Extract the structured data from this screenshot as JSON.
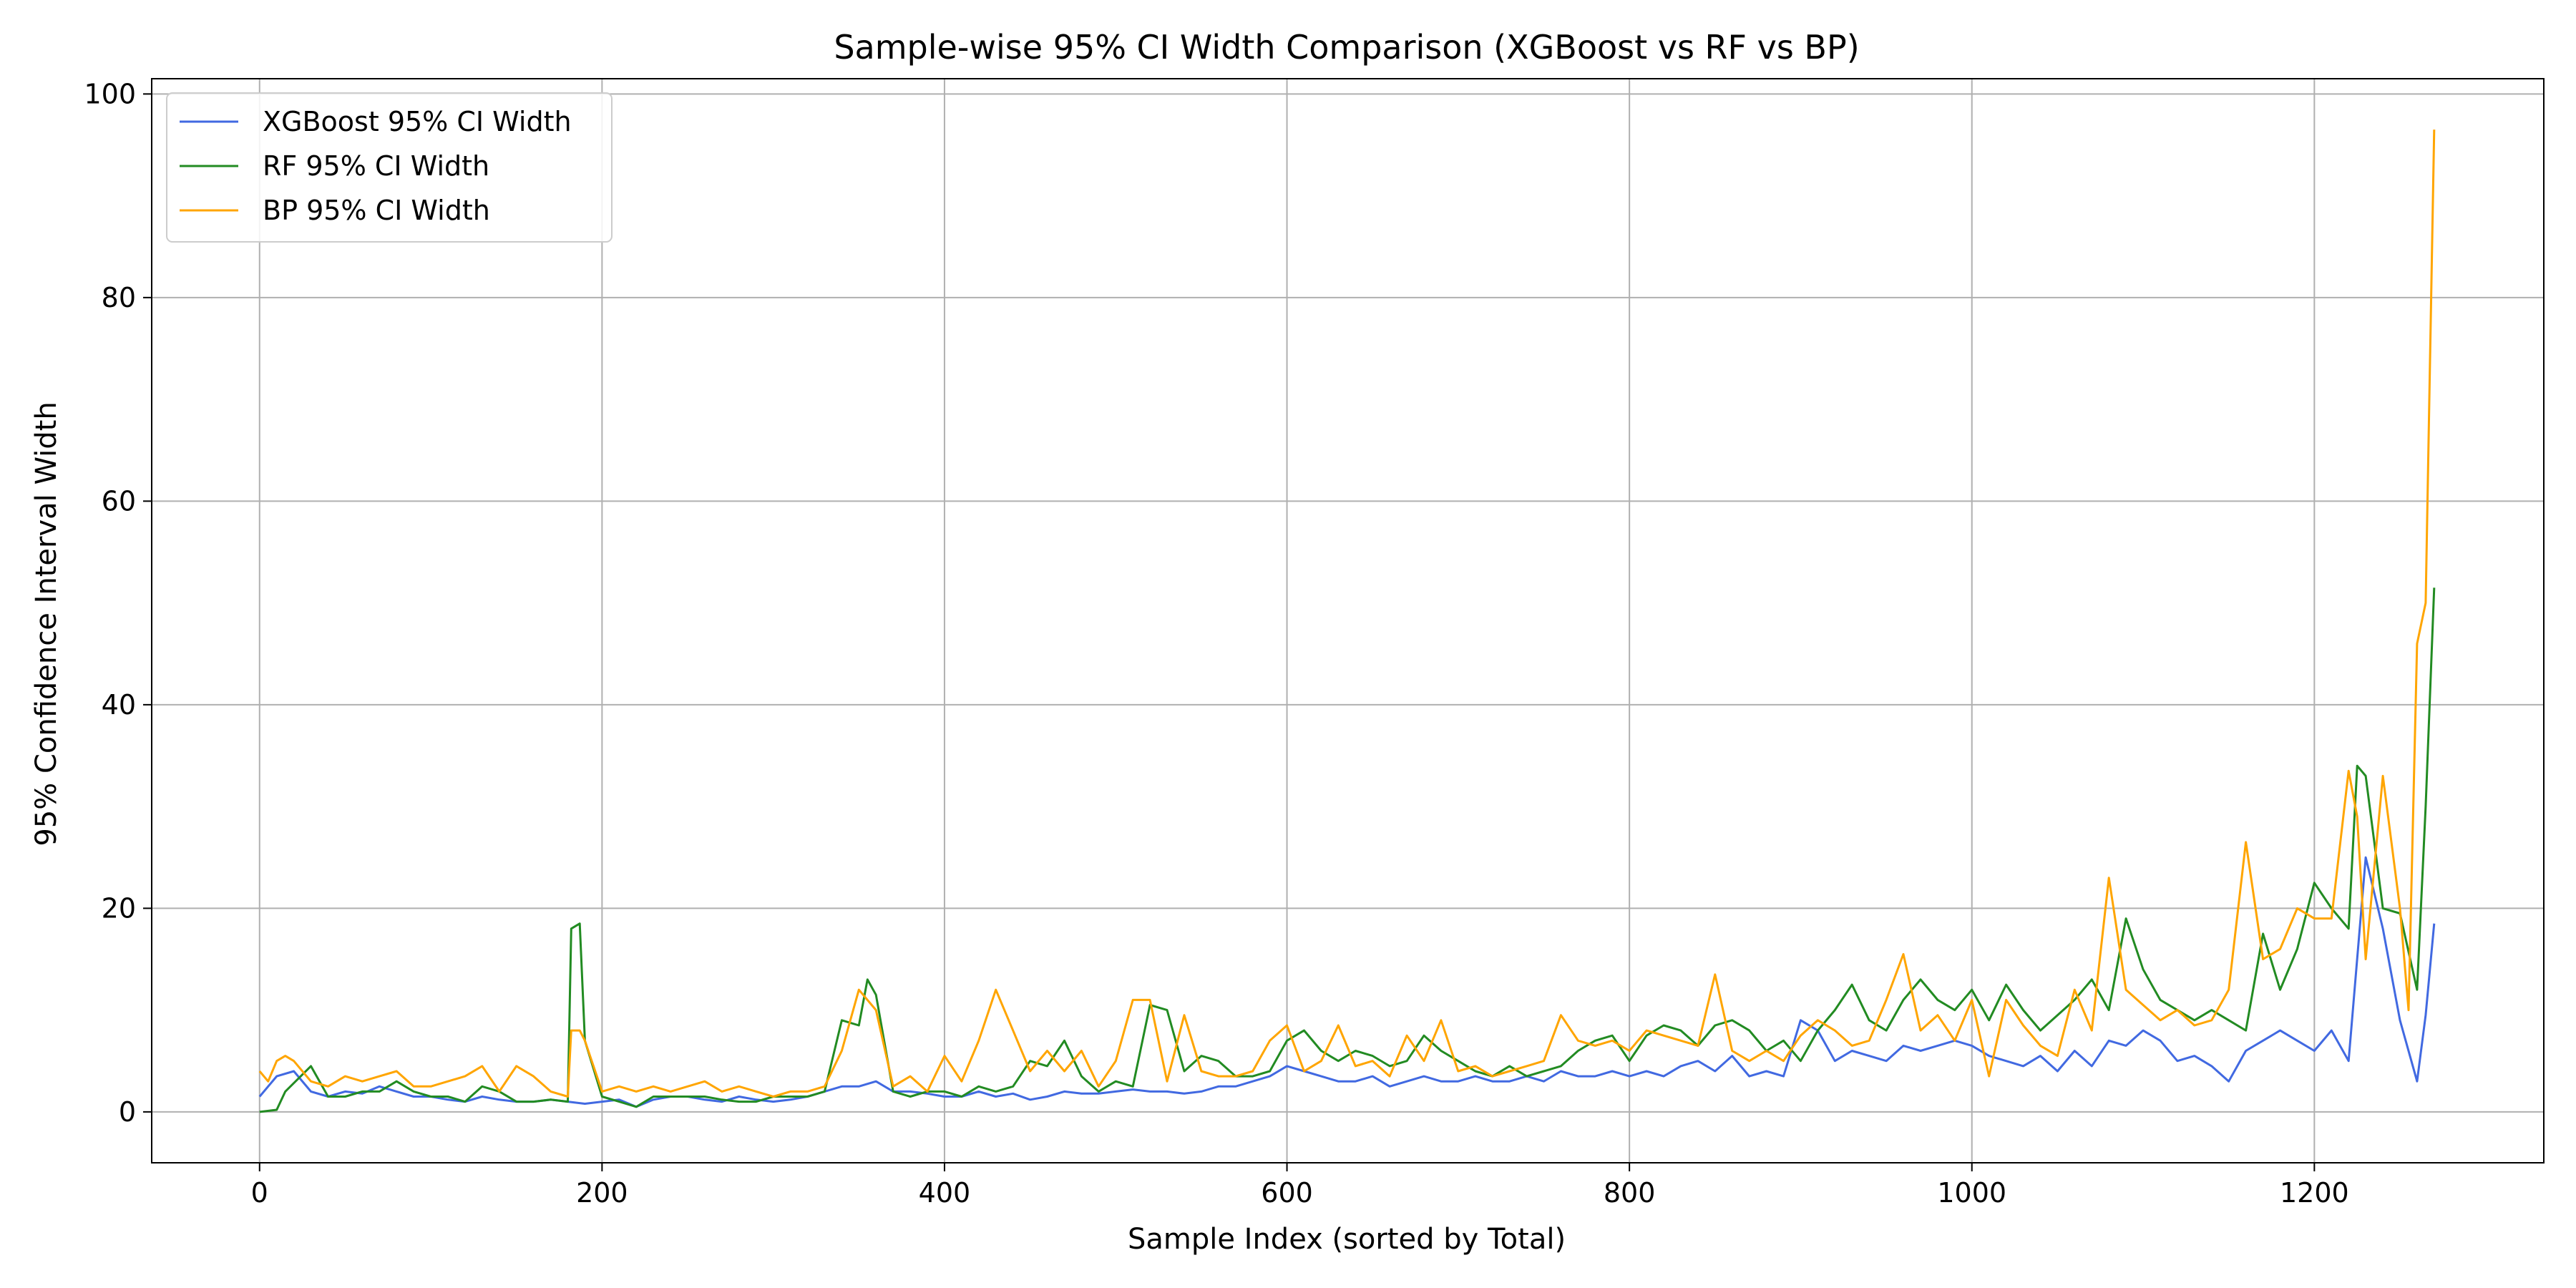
{
  "chart_data": {
    "type": "line",
    "title": "Sample-wise 95% CI Width Comparison (XGBoost vs RF vs BP)",
    "xlabel": "Sample Index (sorted by Total)",
    "ylabel": "95% Confidence Interval Width",
    "xlim": [
      -63,
      1334
    ],
    "ylim": [
      -5,
      101.5
    ],
    "xticks": [
      0,
      200,
      400,
      600,
      800,
      1000,
      1200
    ],
    "yticks": [
      0,
      20,
      40,
      60,
      80,
      100
    ],
    "grid": true,
    "legend_position": "upper-left",
    "colors": {
      "xgb": "#4169e1",
      "rf": "#228b22",
      "bp": "#ffa500"
    },
    "series": [
      {
        "name": "XGBoost 95% CI Width",
        "color": "#4169e1",
        "x": [
          0,
          10,
          20,
          30,
          40,
          50,
          60,
          70,
          80,
          90,
          100,
          110,
          120,
          130,
          140,
          150,
          160,
          170,
          180,
          190,
          200,
          210,
          220,
          230,
          240,
          250,
          260,
          270,
          280,
          290,
          300,
          310,
          320,
          330,
          340,
          350,
          360,
          370,
          380,
          390,
          400,
          410,
          420,
          430,
          440,
          450,
          460,
          470,
          480,
          490,
          500,
          510,
          520,
          530,
          540,
          550,
          560,
          570,
          580,
          590,
          600,
          610,
          620,
          630,
          640,
          650,
          660,
          670,
          680,
          690,
          700,
          710,
          720,
          730,
          740,
          750,
          760,
          770,
          780,
          790,
          800,
          810,
          820,
          830,
          840,
          850,
          860,
          870,
          880,
          890,
          900,
          910,
          920,
          930,
          940,
          950,
          960,
          970,
          980,
          990,
          1000,
          1010,
          1020,
          1030,
          1040,
          1050,
          1060,
          1070,
          1080,
          1090,
          1100,
          1110,
          1120,
          1130,
          1140,
          1150,
          1160,
          1170,
          1180,
          1190,
          1200,
          1210,
          1220,
          1230,
          1240,
          1250,
          1260,
          1265,
          1270
        ],
        "values": [
          1.5,
          3.5,
          4.0,
          2.0,
          1.5,
          2.0,
          1.8,
          2.5,
          2.0,
          1.5,
          1.5,
          1.2,
          1.0,
          1.5,
          1.2,
          1.0,
          1.0,
          1.2,
          1.0,
          0.8,
          1.0,
          1.2,
          0.5,
          1.2,
          1.5,
          1.5,
          1.2,
          1.0,
          1.5,
          1.2,
          1.0,
          1.2,
          1.5,
          2.0,
          2.5,
          2.5,
          3.0,
          2.0,
          2.0,
          1.8,
          1.5,
          1.5,
          2.0,
          1.5,
          1.8,
          1.2,
          1.5,
          2.0,
          1.8,
          1.8,
          2.0,
          2.2,
          2.0,
          2.0,
          1.8,
          2.0,
          2.5,
          2.5,
          3.0,
          3.5,
          4.5,
          4.0,
          3.5,
          3.0,
          3.0,
          3.5,
          2.5,
          3.0,
          3.5,
          3.0,
          3.0,
          3.5,
          3.0,
          3.0,
          3.5,
          3.0,
          4.0,
          3.5,
          3.5,
          4.0,
          3.5,
          4.0,
          3.5,
          4.5,
          5.0,
          4.0,
          5.5,
          3.5,
          4.0,
          3.5,
          9.0,
          8.0,
          5.0,
          6.0,
          5.5,
          5.0,
          6.5,
          6.0,
          6.5,
          7.0,
          6.5,
          5.5,
          5.0,
          4.5,
          5.5,
          4.0,
          6.0,
          4.5,
          7.0,
          6.5,
          8.0,
          7.0,
          5.0,
          5.5,
          4.5,
          3.0,
          6.0,
          7.0,
          8.0,
          7.0,
          6.0,
          8.0,
          5.0,
          25.0,
          18.0,
          9.0,
          3.0,
          9.5,
          18.5
        ]
      },
      {
        "name": "RF 95% CI Width",
        "color": "#228b22",
        "x": [
          0,
          10,
          15,
          30,
          40,
          50,
          60,
          70,
          80,
          90,
          100,
          110,
          120,
          130,
          140,
          150,
          160,
          170,
          180,
          182,
          187,
          190,
          200,
          210,
          220,
          230,
          240,
          250,
          260,
          270,
          280,
          290,
          300,
          310,
          320,
          330,
          340,
          350,
          355,
          360,
          370,
          380,
          390,
          400,
          410,
          420,
          430,
          440,
          450,
          460,
          470,
          480,
          490,
          500,
          510,
          520,
          530,
          540,
          550,
          560,
          570,
          580,
          590,
          600,
          610,
          620,
          630,
          640,
          650,
          660,
          670,
          680,
          690,
          700,
          710,
          720,
          730,
          740,
          750,
          760,
          770,
          780,
          790,
          800,
          810,
          820,
          830,
          840,
          850,
          860,
          870,
          880,
          890,
          900,
          910,
          920,
          930,
          940,
          950,
          960,
          970,
          980,
          990,
          1000,
          1010,
          1020,
          1030,
          1040,
          1050,
          1060,
          1070,
          1080,
          1090,
          1100,
          1110,
          1120,
          1130,
          1140,
          1150,
          1160,
          1170,
          1180,
          1190,
          1200,
          1210,
          1220,
          1225,
          1230,
          1240,
          1250,
          1260,
          1265,
          1270
        ],
        "values": [
          0.0,
          0.2,
          2.0,
          4.5,
          1.5,
          1.5,
          2.0,
          2.0,
          3.0,
          2.0,
          1.5,
          1.5,
          1.0,
          2.5,
          2.0,
          1.0,
          1.0,
          1.2,
          1.0,
          18.0,
          18.5,
          7.0,
          1.5,
          1.0,
          0.5,
          1.5,
          1.5,
          1.5,
          1.5,
          1.2,
          1.0,
          1.0,
          1.5,
          1.5,
          1.5,
          2.0,
          9.0,
          8.5,
          13.0,
          11.5,
          2.0,
          1.5,
          2.0,
          2.0,
          1.5,
          2.5,
          2.0,
          2.5,
          5.0,
          4.5,
          7.0,
          3.5,
          2.0,
          3.0,
          2.5,
          10.5,
          10.0,
          4.0,
          5.5,
          5.0,
          3.5,
          3.5,
          4.0,
          7.0,
          8.0,
          6.0,
          5.0,
          6.0,
          5.5,
          4.5,
          5.0,
          7.5,
          6.0,
          5.0,
          4.0,
          3.5,
          4.5,
          3.5,
          4.0,
          4.5,
          6.0,
          7.0,
          7.5,
          5.0,
          7.5,
          8.5,
          8.0,
          6.5,
          8.5,
          9.0,
          8.0,
          6.0,
          7.0,
          5.0,
          8.0,
          10.0,
          12.5,
          9.0,
          8.0,
          11.0,
          13.0,
          11.0,
          10.0,
          12.0,
          9.0,
          12.5,
          10.0,
          8.0,
          9.5,
          11.0,
          13.0,
          10.0,
          19.0,
          14.0,
          11.0,
          10.0,
          9.0,
          10.0,
          9.0,
          8.0,
          17.5,
          12.0,
          16.0,
          22.5,
          20.0,
          18.0,
          34.0,
          33.0,
          20.0,
          19.5,
          12.0,
          30.0,
          51.5
        ]
      },
      {
        "name": "BP 95% CI Width",
        "color": "#ffa500",
        "x": [
          0,
          5,
          10,
          15,
          20,
          30,
          40,
          50,
          60,
          70,
          80,
          90,
          100,
          110,
          120,
          130,
          140,
          150,
          160,
          170,
          180,
          182,
          187,
          190,
          200,
          210,
          220,
          230,
          240,
          250,
          260,
          270,
          280,
          290,
          300,
          310,
          320,
          330,
          340,
          350,
          360,
          370,
          380,
          390,
          400,
          410,
          420,
          430,
          440,
          450,
          460,
          470,
          480,
          490,
          500,
          510,
          520,
          530,
          540,
          550,
          560,
          570,
          580,
          590,
          600,
          610,
          620,
          630,
          640,
          650,
          660,
          670,
          680,
          690,
          700,
          710,
          720,
          730,
          740,
          750,
          760,
          770,
          780,
          790,
          800,
          810,
          820,
          830,
          840,
          850,
          860,
          870,
          880,
          890,
          900,
          910,
          920,
          930,
          940,
          950,
          960,
          970,
          980,
          990,
          1000,
          1010,
          1020,
          1030,
          1040,
          1050,
          1060,
          1070,
          1080,
          1090,
          1100,
          1110,
          1120,
          1130,
          1140,
          1150,
          1160,
          1170,
          1180,
          1190,
          1200,
          1210,
          1220,
          1225,
          1230,
          1240,
          1250,
          1255,
          1260,
          1265,
          1270
        ],
        "values": [
          4.0,
          3.0,
          5.0,
          5.5,
          5.0,
          3.0,
          2.5,
          3.5,
          3.0,
          3.5,
          4.0,
          2.5,
          2.5,
          3.0,
          3.5,
          4.5,
          2.0,
          4.5,
          3.5,
          2.0,
          1.5,
          8.0,
          8.0,
          7.0,
          2.0,
          2.5,
          2.0,
          2.5,
          2.0,
          2.5,
          3.0,
          2.0,
          2.5,
          2.0,
          1.5,
          2.0,
          2.0,
          2.5,
          6.0,
          12.0,
          10.0,
          2.5,
          3.5,
          2.0,
          5.5,
          3.0,
          7.0,
          12.0,
          8.0,
          4.0,
          6.0,
          4.0,
          6.0,
          2.5,
          5.0,
          11.0,
          11.0,
          3.0,
          9.5,
          4.0,
          3.5,
          3.5,
          4.0,
          7.0,
          8.5,
          4.0,
          5.0,
          8.5,
          4.5,
          5.0,
          3.5,
          7.5,
          5.0,
          9.0,
          4.0,
          4.5,
          3.5,
          4.0,
          4.5,
          5.0,
          9.5,
          7.0,
          6.5,
          7.0,
          6.0,
          8.0,
          7.5,
          7.0,
          6.5,
          13.5,
          6.0,
          5.0,
          6.0,
          5.0,
          7.5,
          9.0,
          8.0,
          6.5,
          7.0,
          11.0,
          15.5,
          8.0,
          9.5,
          7.0,
          11.0,
          3.5,
          11.0,
          8.5,
          6.5,
          5.5,
          12.0,
          8.0,
          23.0,
          12.0,
          10.5,
          9.0,
          10.0,
          8.5,
          9.0,
          12.0,
          26.5,
          15.0,
          16.0,
          20.0,
          19.0,
          19.0,
          33.5,
          29.0,
          15.0,
          33.0,
          20.0,
          10.0,
          46.0,
          50.0,
          96.5
        ]
      }
    ]
  }
}
